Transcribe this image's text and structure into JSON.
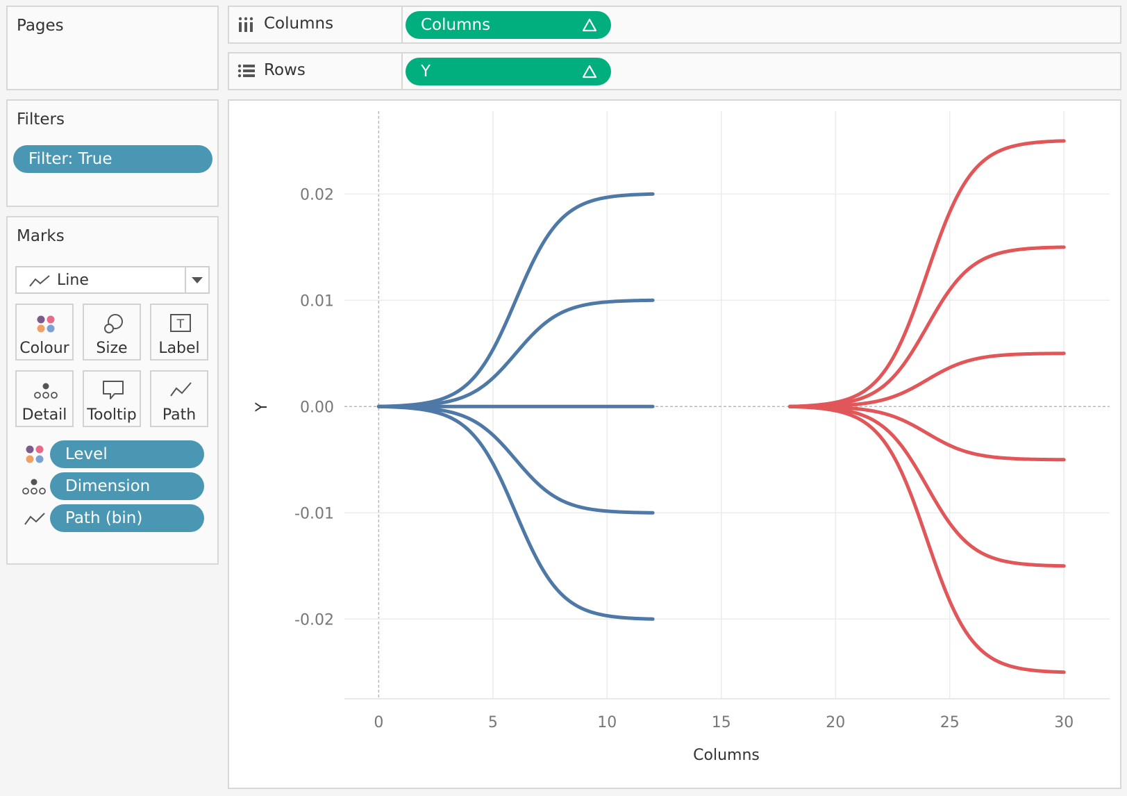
{
  "pages": {
    "title": "Pages"
  },
  "filters": {
    "title": "Filters",
    "pill": "Filter: True"
  },
  "marks": {
    "title": "Marks",
    "mark_type": "Line",
    "buttons": [
      "Colour",
      "Size",
      "Label",
      "Detail",
      "Tooltip",
      "Path"
    ],
    "pills": [
      {
        "icon": "colour-icon",
        "label": "Level"
      },
      {
        "icon": "detail-icon",
        "label": "Dimension"
      },
      {
        "icon": "path-icon",
        "label": "Path (bin)"
      }
    ]
  },
  "shelves": {
    "columns": {
      "label": "Columns",
      "pill": "Columns",
      "pill_icon": "delta"
    },
    "rows": {
      "label": "Rows",
      "pill": "Y",
      "pill_icon": "delta"
    }
  },
  "colors": {
    "blue": "#4e79a7",
    "red": "#e15759",
    "pill_blue": "#4a97b4",
    "pill_green": "#00ae7e"
  },
  "chart_data": {
    "type": "line",
    "xlabel": "Columns",
    "ylabel": "Y",
    "xlim": [
      -1.5,
      32
    ],
    "ylim": [
      -0.0275,
      0.0278
    ],
    "x_ticks": [
      "0",
      "5",
      "10",
      "15",
      "20",
      "25",
      "30"
    ],
    "y_ticks": [
      "0.02",
      "0.01",
      "0.00",
      "-0.01",
      "-0.02"
    ],
    "grid": true,
    "groups": [
      {
        "color": "blue",
        "x_start": 0,
        "x_end": 12,
        "end_values": [
          0.02,
          0.01,
          0.0,
          -0.01,
          -0.02
        ]
      },
      {
        "color": "red",
        "x_start": 18,
        "x_end": 30,
        "end_values": [
          0.025,
          0.015,
          0.005,
          -0.005,
          -0.015,
          -0.025
        ]
      }
    ]
  }
}
